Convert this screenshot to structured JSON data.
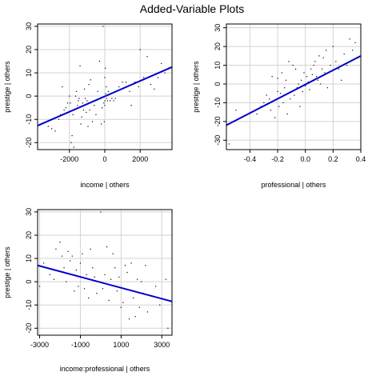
{
  "figure": {
    "title": "Added-Variable Plots"
  },
  "chart_data": [
    {
      "type": "scatter",
      "xlabel": "income | others",
      "ylabel": "prestige | others",
      "xlim": [
        -3800,
        3800
      ],
      "ylim": [
        -23,
        31
      ],
      "xticks": [
        -2000,
        0,
        2000
      ],
      "yticks": [
        -20,
        -10,
        0,
        10,
        20,
        30
      ],
      "grid": true,
      "fit_line": {
        "x": [
          -3800,
          3800
        ],
        "y": [
          -12.7,
          12.5
        ],
        "color": "#0000cc"
      },
      "points": {
        "x": [
          -3200,
          -3000,
          -2800,
          -2600,
          -2500,
          -2400,
          -2300,
          -2200,
          -2100,
          -2000,
          -1950,
          -1900,
          -1850,
          -1800,
          -1750,
          -1700,
          -1650,
          -1600,
          -1550,
          -1500,
          -1450,
          -1400,
          -1350,
          -1300,
          -1250,
          -1200,
          -1150,
          -1100,
          -1050,
          -1000,
          -950,
          -900,
          -850,
          -800,
          -700,
          -600,
          -500,
          -400,
          -300,
          -200,
          -150,
          -100,
          -50,
          -30,
          -10,
          0,
          10,
          30,
          50,
          80,
          100,
          150,
          200,
          300,
          400,
          500,
          600,
          800,
          1000,
          1200,
          1400,
          1500,
          1700,
          1900,
          2000,
          2200,
          2400,
          2600,
          2800,
          3000,
          3200,
          3400,
          3600
        ],
        "y": [
          -13,
          -14,
          -15,
          -10,
          -8,
          4,
          -6,
          -5,
          -3,
          0,
          -3,
          -20,
          -17,
          -8,
          -22,
          -6,
          0,
          2,
          -4,
          -2,
          -1,
          13,
          -12,
          -9,
          -3,
          -6,
          3,
          -1,
          -7,
          -2,
          -13,
          5,
          -6,
          7,
          -11,
          -4,
          -8,
          2,
          15,
          -12,
          -5,
          30,
          -3,
          -11,
          -4,
          8,
          -2,
          12,
          1,
          4,
          -1,
          -2,
          2,
          -2,
          -1,
          -2,
          -1,
          4,
          6,
          6,
          2,
          -4,
          6,
          4,
          20,
          8,
          17,
          5,
          3,
          8,
          14,
          10,
          12
        ]
      }
    },
    {
      "type": "scatter",
      "xlabel": "professional | others",
      "ylabel": "prestige | others",
      "xlim": [
        -0.57,
        0.4
      ],
      "ylim": [
        -35,
        32
      ],
      "xticks": [
        -0.4,
        -0.2,
        0.0,
        0.2,
        0.4
      ],
      "yticks": [
        -30,
        -20,
        -10,
        0,
        10,
        20,
        30
      ],
      "grid": true,
      "fit_line": {
        "x": [
          -0.57,
          0.4
        ],
        "y": [
          -22,
          15
        ],
        "color": "#0000cc"
      },
      "points": {
        "x": [
          -0.55,
          -0.5,
          -0.35,
          -0.32,
          -0.3,
          -0.28,
          -0.26,
          -0.25,
          -0.24,
          -0.22,
          -0.2,
          -0.2,
          -0.19,
          -0.18,
          -0.17,
          -0.16,
          -0.15,
          -0.14,
          -0.13,
          -0.12,
          -0.11,
          -0.1,
          -0.09,
          -0.08,
          -0.07,
          -0.06,
          -0.05,
          -0.04,
          -0.03,
          -0.02,
          -0.01,
          0.0,
          0.01,
          0.02,
          0.03,
          0.04,
          0.05,
          0.06,
          0.07,
          0.08,
          0.09,
          0.1,
          0.11,
          0.12,
          0.13,
          0.14,
          0.15,
          0.16,
          0.18,
          0.2,
          0.22,
          0.24,
          0.26,
          0.28,
          0.3,
          0.32,
          0.34,
          0.36,
          0.38
        ],
        "y": [
          -32,
          -14,
          -16,
          -12,
          -10,
          -6,
          -8,
          -14,
          4,
          -18,
          -4,
          3,
          -12,
          -5,
          6,
          -10,
          -2,
          2,
          -16,
          12,
          -8,
          -4,
          10,
          -6,
          8,
          -2,
          0,
          -12,
          2,
          -4,
          6,
          -1,
          4,
          1,
          -3,
          8,
          5,
          10,
          12,
          4,
          2,
          15,
          0,
          8,
          14,
          6,
          18,
          -2,
          10,
          20,
          12,
          8,
          2,
          16,
          10,
          24,
          18,
          22,
          14
        ]
      }
    },
    {
      "type": "scatter",
      "xlabel": "income:professional | others",
      "ylabel": "prestige | others",
      "xlim": [
        -3100,
        3500
      ],
      "ylim": [
        -23,
        31
      ],
      "xticks": [
        -3000,
        -1000,
        1000,
        3000
      ],
      "yticks": [
        -20,
        -10,
        0,
        10,
        20,
        30
      ],
      "grid": true,
      "fit_line": {
        "x": [
          -3100,
          3500
        ],
        "y": [
          7,
          -8.5
        ],
        "color": "#0000cc"
      },
      "points": {
        "x": [
          -3000,
          -2800,
          -2500,
          -2300,
          -2200,
          -2000,
          -1900,
          -1800,
          -1700,
          -1600,
          -1500,
          -1400,
          -1300,
          -1200,
          -1100,
          -1000,
          -900,
          -800,
          -700,
          -600,
          -500,
          -400,
          -300,
          -200,
          -100,
          0,
          100,
          200,
          300,
          400,
          500,
          600,
          700,
          800,
          900,
          1000,
          1100,
          1200,
          1300,
          1400,
          1500,
          1600,
          1700,
          1800,
          1900,
          2000,
          2100,
          2200,
          2300,
          2500,
          2700,
          2900,
          3200,
          3300
        ],
        "y": [
          -2,
          8,
          3,
          1,
          14,
          17,
          11,
          6,
          0,
          13,
          9,
          11,
          -4,
          5,
          -2,
          8,
          12,
          -3,
          3,
          -7,
          14,
          6,
          2,
          -5,
          0,
          30,
          -3,
          3,
          15,
          -8,
          1,
          12,
          6,
          -4,
          2,
          -11,
          -9,
          7,
          4,
          -16,
          8,
          -7,
          -15,
          1,
          -11,
          0,
          -5,
          7,
          -13,
          -6,
          -2,
          -10,
          1,
          -20
        ]
      }
    }
  ]
}
